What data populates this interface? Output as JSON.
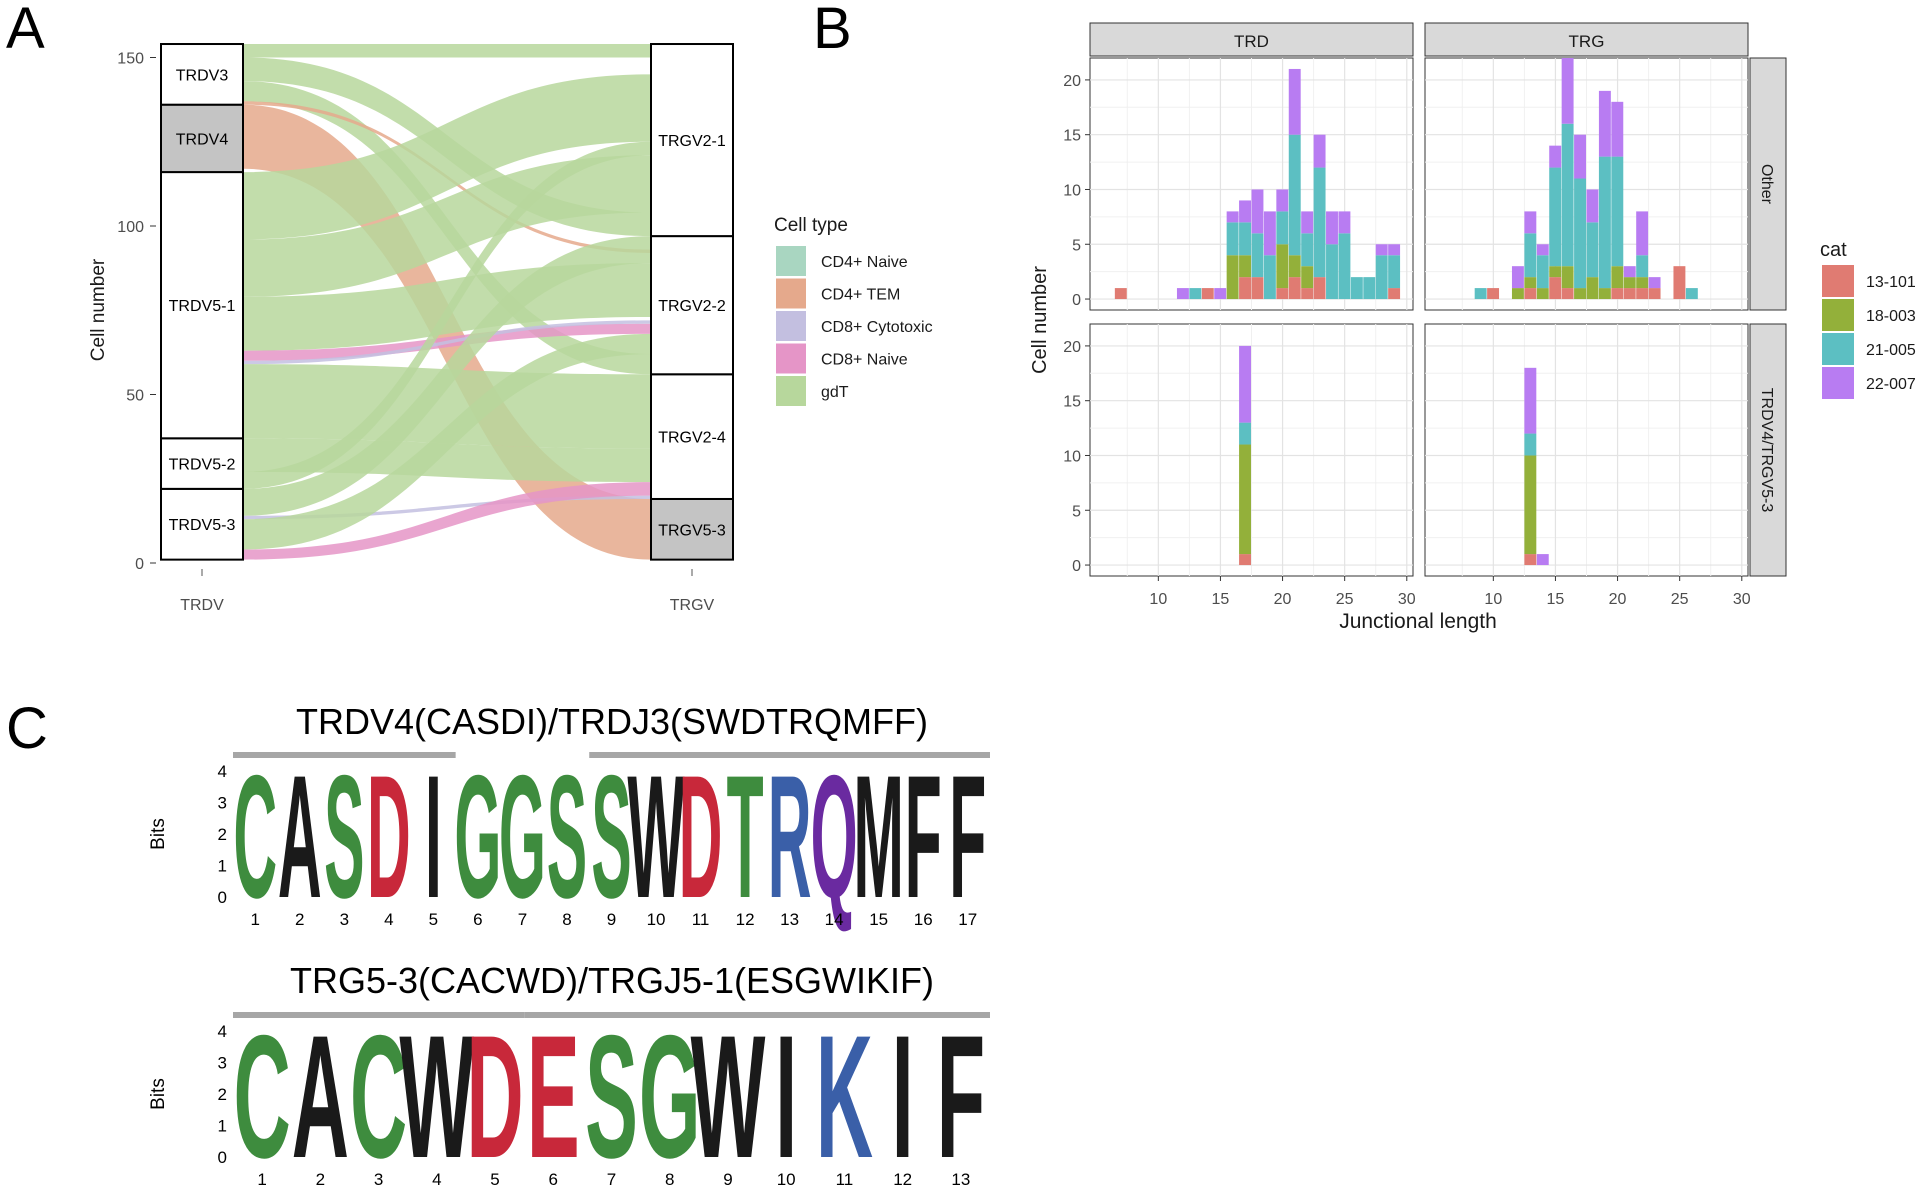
{
  "panels": {
    "a": "A",
    "b": "B",
    "c": "C"
  },
  "chart_data": [
    {
      "id": "alluvial",
      "type": "alluvial",
      "ylabel": "Cell number",
      "ylim": [
        0,
        152
      ],
      "yticks": [
        0,
        50,
        100,
        150
      ],
      "axis_labels": [
        "TRDV",
        "TRGV"
      ],
      "left_strata": [
        {
          "label": "TRDV5-3",
          "from": 1,
          "to": 22
        },
        {
          "label": "TRDV5-2",
          "from": 22,
          "to": 37
        },
        {
          "label": "TRDV5-1",
          "from": 37,
          "to": 116
        },
        {
          "label": "TRDV4",
          "from": 116,
          "to": 136,
          "shaded": true
        },
        {
          "label": "TRDV3",
          "from": 136,
          "to": 154
        }
      ],
      "right_strata": [
        {
          "label": "TRGV5-3",
          "from": 1,
          "to": 19,
          "shaded": true
        },
        {
          "label": "TRGV2-4",
          "from": 19,
          "to": 56
        },
        {
          "label": "TRGV2-2",
          "from": 56,
          "to": 97
        },
        {
          "label": "TRGV2-1",
          "from": 97,
          "to": 154
        }
      ],
      "flows": [
        {
          "type": "gdT",
          "l0": 150,
          "l1": 154,
          "r0": 150,
          "r1": 154
        },
        {
          "type": "gdT",
          "l0": 143,
          "l1": 150,
          "r0": 97,
          "r1": 104
        },
        {
          "type": "gdT",
          "l0": 137,
          "l1": 143,
          "r0": 56,
          "r1": 62
        },
        {
          "type": "CD4+ TEM",
          "l0": 136,
          "l1": 137,
          "r0": 92,
          "r1": 93
        },
        {
          "type": "CD4+ TEM",
          "l0": 117,
          "l1": 136,
          "r0": 1,
          "r1": 19
        },
        {
          "type": "gdT",
          "l0": 96,
          "l1": 116,
          "r0": 125,
          "r1": 145
        },
        {
          "type": "gdT",
          "l0": 79,
          "l1": 96,
          "r0": 104,
          "r1": 121
        },
        {
          "type": "gdT",
          "l0": 63,
          "l1": 79,
          "r0": 73,
          "r1": 89
        },
        {
          "type": "CD8+ Naive",
          "l0": 60,
          "l1": 63,
          "r0": 68,
          "r1": 71
        },
        {
          "type": "CD8+ Cytotoxic",
          "l0": 59,
          "l1": 60,
          "r0": 71,
          "r1": 72
        },
        {
          "type": "gdT",
          "l0": 37,
          "l1": 59,
          "r0": 34,
          "r1": 56
        },
        {
          "type": "gdT",
          "l0": 27,
          "l1": 37,
          "r0": 24,
          "r1": 34
        },
        {
          "type": "gdT",
          "l0": 22,
          "l1": 27,
          "r0": 121,
          "r1": 125
        },
        {
          "type": "gdT",
          "l0": 14,
          "l1": 22,
          "r0": 89,
          "r1": 97
        },
        {
          "type": "CD8+ Cytotoxic",
          "l0": 13,
          "l1": 14,
          "r0": 19,
          "r1": 20
        },
        {
          "type": "gdT",
          "l0": 4,
          "l1": 13,
          "r0": 62,
          "r1": 68
        },
        {
          "type": "CD8+ Naive",
          "l0": 1,
          "l1": 4,
          "r0": 20,
          "r1": 24
        }
      ],
      "legend_title": "Cell type",
      "legend": [
        {
          "name": "CD4+ Naive",
          "color": "#a9d6c1"
        },
        {
          "name": "CD4+ TEM",
          "color": "#e5a98c"
        },
        {
          "name": "CD8+ Cytotoxic",
          "color": "#c3bfe0"
        },
        {
          "name": "CD8+ Naive",
          "color": "#e595c7"
        },
        {
          "name": "gdT",
          "color": "#b7d79c"
        }
      ]
    },
    {
      "id": "histogram",
      "type": "bar",
      "stacked": true,
      "xlabel": "Junctional length",
      "ylabel": "Cell number",
      "xlim": [
        4.5,
        30.5
      ],
      "xticks": [
        10,
        15,
        20,
        25,
        30
      ],
      "ylim": [
        -1,
        22
      ],
      "yticks": [
        0,
        5,
        10,
        15,
        20
      ],
      "col_strips": [
        "TRD",
        "TRG"
      ],
      "row_strips": [
        "Other",
        "TRDV4/TRGV5-3"
      ],
      "legend_title": "cat",
      "categories": [
        {
          "name": "13-101",
          "color": "#e07b72"
        },
        {
          "name": "18-003",
          "color": "#93b03a"
        },
        {
          "name": "21-005",
          "color": "#5cbfc2"
        },
        {
          "name": "22-007",
          "color": "#b87cf2"
        }
      ],
      "facets": [
        {
          "row": 0,
          "col": 0,
          "bars": [
            {
              "x": 7,
              "v": [
                1,
                0,
                0,
                0
              ]
            },
            {
              "x": 12,
              "v": [
                0,
                0,
                0,
                1
              ]
            },
            {
              "x": 13,
              "v": [
                0,
                0,
                1,
                0
              ]
            },
            {
              "x": 14,
              "v": [
                1,
                0,
                0,
                0
              ]
            },
            {
              "x": 15,
              "v": [
                0,
                0,
                0,
                1
              ]
            },
            {
              "x": 16,
              "v": [
                0,
                4,
                3,
                1
              ]
            },
            {
              "x": 17,
              "v": [
                2,
                2,
                3,
                2
              ]
            },
            {
              "x": 18,
              "v": [
                2,
                0,
                4,
                4
              ]
            },
            {
              "x": 19,
              "v": [
                0,
                0,
                4,
                4
              ]
            },
            {
              "x": 20,
              "v": [
                1,
                4,
                3,
                2
              ]
            },
            {
              "x": 21,
              "v": [
                2,
                2,
                11,
                6
              ]
            },
            {
              "x": 22,
              "v": [
                1,
                2,
                3,
                2
              ]
            },
            {
              "x": 23,
              "v": [
                2,
                0,
                10,
                3
              ]
            },
            {
              "x": 24,
              "v": [
                0,
                0,
                5,
                3
              ]
            },
            {
              "x": 25,
              "v": [
                0,
                0,
                6,
                2
              ]
            },
            {
              "x": 26,
              "v": [
                0,
                0,
                2,
                0
              ]
            },
            {
              "x": 27,
              "v": [
                0,
                0,
                2,
                0
              ]
            },
            {
              "x": 28,
              "v": [
                0,
                0,
                4,
                1
              ]
            },
            {
              "x": 29,
              "v": [
                1,
                0,
                3,
                1
              ]
            }
          ]
        },
        {
          "row": 0,
          "col": 1,
          "bars": [
            {
              "x": 9,
              "v": [
                0,
                0,
                1,
                0
              ]
            },
            {
              "x": 10,
              "v": [
                1,
                0,
                0,
                0
              ]
            },
            {
              "x": 12,
              "v": [
                0,
                1,
                0,
                2
              ]
            },
            {
              "x": 13,
              "v": [
                1,
                1,
                4,
                2
              ]
            },
            {
              "x": 14,
              "v": [
                0,
                1,
                3,
                1
              ]
            },
            {
              "x": 15,
              "v": [
                2,
                1,
                9,
                2
              ]
            },
            {
              "x": 16,
              "v": [
                1,
                2,
                13,
                6
              ]
            },
            {
              "x": 17,
              "v": [
                0,
                1,
                10,
                4
              ]
            },
            {
              "x": 18,
              "v": [
                0,
                2,
                5,
                3
              ]
            },
            {
              "x": 19,
              "v": [
                0,
                1,
                12,
                6
              ]
            },
            {
              "x": 20,
              "v": [
                1,
                2,
                10,
                5
              ]
            },
            {
              "x": 21,
              "v": [
                1,
                1,
                0,
                1
              ]
            },
            {
              "x": 22,
              "v": [
                1,
                1,
                2,
                4
              ]
            },
            {
              "x": 23,
              "v": [
                1,
                0,
                0,
                1
              ]
            },
            {
              "x": 25,
              "v": [
                3,
                0,
                0,
                0
              ]
            },
            {
              "x": 26,
              "v": [
                0,
                0,
                1,
                0
              ]
            }
          ]
        },
        {
          "row": 1,
          "col": 0,
          "bars": [
            {
              "x": 17,
              "v": [
                1,
                10,
                2,
                7
              ]
            }
          ]
        },
        {
          "row": 1,
          "col": 1,
          "bars": [
            {
              "x": 13,
              "v": [
                1,
                9,
                2,
                6
              ]
            },
            {
              "x": 14,
              "v": [
                0,
                0,
                0,
                1
              ]
            }
          ]
        }
      ]
    },
    {
      "id": "logo1",
      "type": "sequence-logo",
      "title": "TRDV4(CASDI)/TRDJ3(SWDTRQMFF)",
      "ylabel": "Bits",
      "ylim": [
        0,
        4
      ],
      "yticks": [
        0,
        1,
        2,
        3,
        4
      ],
      "germline_bars": [
        [
          1,
          5
        ],
        [
          9,
          17
        ]
      ],
      "letters": [
        {
          "pos": 1,
          "letter": "C",
          "color": "#3e8c3e"
        },
        {
          "pos": 2,
          "letter": "A",
          "color": "#1a1a1a"
        },
        {
          "pos": 3,
          "letter": "S",
          "color": "#3e8c3e"
        },
        {
          "pos": 4,
          "letter": "D",
          "color": "#c8283a"
        },
        {
          "pos": 5,
          "letter": "I",
          "color": "#1a1a1a"
        },
        {
          "pos": 6,
          "letter": "G",
          "color": "#3e8c3e"
        },
        {
          "pos": 7,
          "letter": "G",
          "color": "#3e8c3e"
        },
        {
          "pos": 8,
          "letter": "S",
          "color": "#3e8c3e"
        },
        {
          "pos": 9,
          "letter": "S",
          "color": "#3e8c3e"
        },
        {
          "pos": 10,
          "letter": "W",
          "color": "#1a1a1a"
        },
        {
          "pos": 11,
          "letter": "D",
          "color": "#c8283a"
        },
        {
          "pos": 12,
          "letter": "T",
          "color": "#3e8c3e"
        },
        {
          "pos": 13,
          "letter": "R",
          "color": "#3a5fa8"
        },
        {
          "pos": 14,
          "letter": "Q",
          "color": "#6a2aa0"
        },
        {
          "pos": 15,
          "letter": "M",
          "color": "#1a1a1a"
        },
        {
          "pos": 16,
          "letter": "F",
          "color": "#1a1a1a"
        },
        {
          "pos": 17,
          "letter": "F",
          "color": "#1a1a1a"
        }
      ]
    },
    {
      "id": "logo2",
      "type": "sequence-logo",
      "title": "TRG5-3(CACWD)/TRGJ5-1(ESGWIKIF)",
      "ylabel": "Bits",
      "ylim": [
        0,
        4
      ],
      "yticks": [
        0,
        1,
        2,
        3,
        4
      ],
      "germline_bars": [
        [
          1,
          5
        ],
        [
          6,
          13
        ]
      ],
      "letters": [
        {
          "pos": 1,
          "letter": "C",
          "color": "#3e8c3e"
        },
        {
          "pos": 2,
          "letter": "A",
          "color": "#1a1a1a"
        },
        {
          "pos": 3,
          "letter": "C",
          "color": "#3e8c3e"
        },
        {
          "pos": 4,
          "letter": "W",
          "color": "#1a1a1a"
        },
        {
          "pos": 5,
          "letter": "D",
          "color": "#c8283a"
        },
        {
          "pos": 6,
          "letter": "E",
          "color": "#c8283a"
        },
        {
          "pos": 7,
          "letter": "S",
          "color": "#3e8c3e"
        },
        {
          "pos": 8,
          "letter": "G",
          "color": "#3e8c3e"
        },
        {
          "pos": 9,
          "letter": "W",
          "color": "#1a1a1a"
        },
        {
          "pos": 10,
          "letter": "I",
          "color": "#1a1a1a"
        },
        {
          "pos": 11,
          "letter": "K",
          "color": "#3a5fa8"
        },
        {
          "pos": 12,
          "letter": "I",
          "color": "#1a1a1a"
        },
        {
          "pos": 13,
          "letter": "F",
          "color": "#1a1a1a"
        }
      ]
    }
  ]
}
